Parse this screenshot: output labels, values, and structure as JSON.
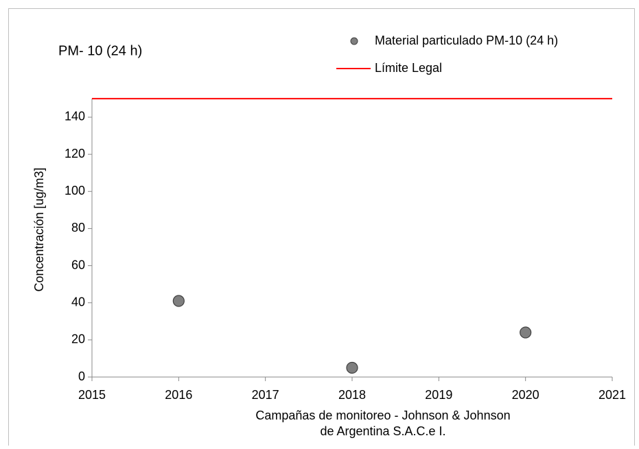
{
  "chart_data": {
    "type": "scatter",
    "title": "PM- 10 (24 h)",
    "x_label": [
      "Campañas de monitoreo - Johnson & Johnson",
      "de Argentina S.A.C.e I."
    ],
    "y_label": "Concentración [ug/m3]",
    "xlim": [
      2015,
      2021
    ],
    "xticks": [
      2015,
      2016,
      2017,
      2018,
      2019,
      2020,
      2021
    ],
    "ylim": [
      0,
      150
    ],
    "yticks": [
      0,
      20,
      40,
      60,
      80,
      100,
      120,
      140
    ],
    "series": [
      {
        "name": "Material particulado PM-10 (24 h)",
        "type": "scatter",
        "color": "#7f7f7f",
        "x": [
          2016,
          2018,
          2020
        ],
        "values": [
          41,
          5,
          24
        ]
      },
      {
        "name": "Límite Legal",
        "type": "line",
        "color": "#ff0000",
        "x": [
          2015,
          2021
        ],
        "values": [
          150,
          150
        ]
      }
    ]
  }
}
